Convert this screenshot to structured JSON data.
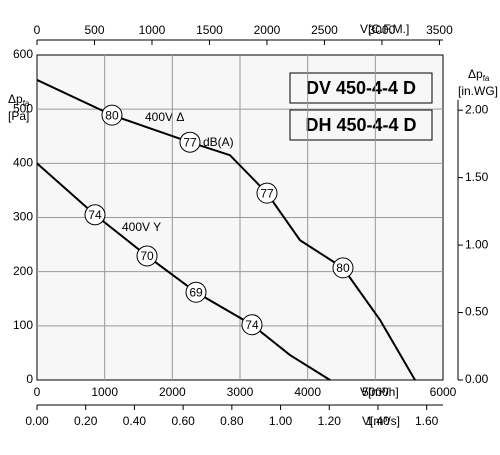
{
  "chart_data": {
    "type": "line",
    "xlim": [
      0,
      6000
    ],
    "xticks": [
      0,
      1000,
      2000,
      3000,
      4000,
      5000,
      6000
    ],
    "xlabel": "V[m³/h]",
    "ylim": [
      0,
      600
    ],
    "yticks": [
      0,
      100,
      200,
      300,
      400,
      500,
      600
    ],
    "ylabel_main": "Δp",
    "ylabel_sub": "fa",
    "ylabel_unit": "[Pa]",
    "x2lim": [
      0,
      3531
    ],
    "x2ticks": [
      0,
      500,
      1000,
      1500,
      2000,
      2500,
      3000,
      3500
    ],
    "x2label": "V[C.F.M.]",
    "x3lim": [
      0,
      1.667
    ],
    "x3ticks": [
      {
        "value": 0,
        "label": "0.00"
      },
      {
        "value": 0.2,
        "label": "0.20"
      },
      {
        "value": 0.4,
        "label": "0.40"
      },
      {
        "value": 0.6,
        "label": "0.60"
      },
      {
        "value": 0.8,
        "label": "0.80"
      },
      {
        "value": 1.0,
        "label": "1.00"
      },
      {
        "value": 1.2,
        "label": "1.20"
      },
      {
        "value": 1.4,
        "label": "1.40"
      },
      {
        "value": 1.6,
        "label": "1.60"
      }
    ],
    "x3label": "V[m³/s]",
    "y2lim": [
      0,
      2.409
    ],
    "y2ticks": [
      {
        "value": 0,
        "label": "0.00"
      },
      {
        "value": 0.5,
        "label": "0.50"
      },
      {
        "value": 1.0,
        "label": "1.00"
      },
      {
        "value": 1.5,
        "label": "1.50"
      },
      {
        "value": 2.0,
        "label": "2.00"
      }
    ],
    "y2label_main": "Δp",
    "y2label_sub": "fa",
    "y2label_unit": "[in.WG]",
    "grid": true,
    "series": [
      {
        "name": "400V Δ",
        "color": "#000000",
        "x": [
          0,
          1108,
          2261,
          2852,
          3399,
          3887,
          4522,
          5069,
          5586
        ],
        "values": [
          554,
          489,
          439,
          415,
          345,
          258,
          207,
          111,
          0
        ]
      },
      {
        "name": "400V Y",
        "color": "#000000",
        "x": [
          0,
          857,
          1626,
          2350,
          3177,
          3739,
          4330
        ],
        "values": [
          400,
          305,
          229,
          162,
          102,
          46,
          0
        ]
      }
    ],
    "markers": [
      {
        "x": 1108,
        "y": 489,
        "db": 80
      },
      {
        "x": 2261,
        "y": 439,
        "db": 77
      },
      {
        "x": 3399,
        "y": 345,
        "db": 77
      },
      {
        "x": 4522,
        "y": 207,
        "db": 80
      },
      {
        "x": 857,
        "y": 305,
        "db": 74
      },
      {
        "x": 1626,
        "y": 229,
        "db": 70
      },
      {
        "x": 2350,
        "y": 162,
        "db": 69
      },
      {
        "x": 3177,
        "y": 102,
        "db": 74
      }
    ],
    "annotations": [
      "dB(A)"
    ],
    "models": [
      "DV 450-4-4 D",
      "DH 450-4-4 D"
    ]
  }
}
